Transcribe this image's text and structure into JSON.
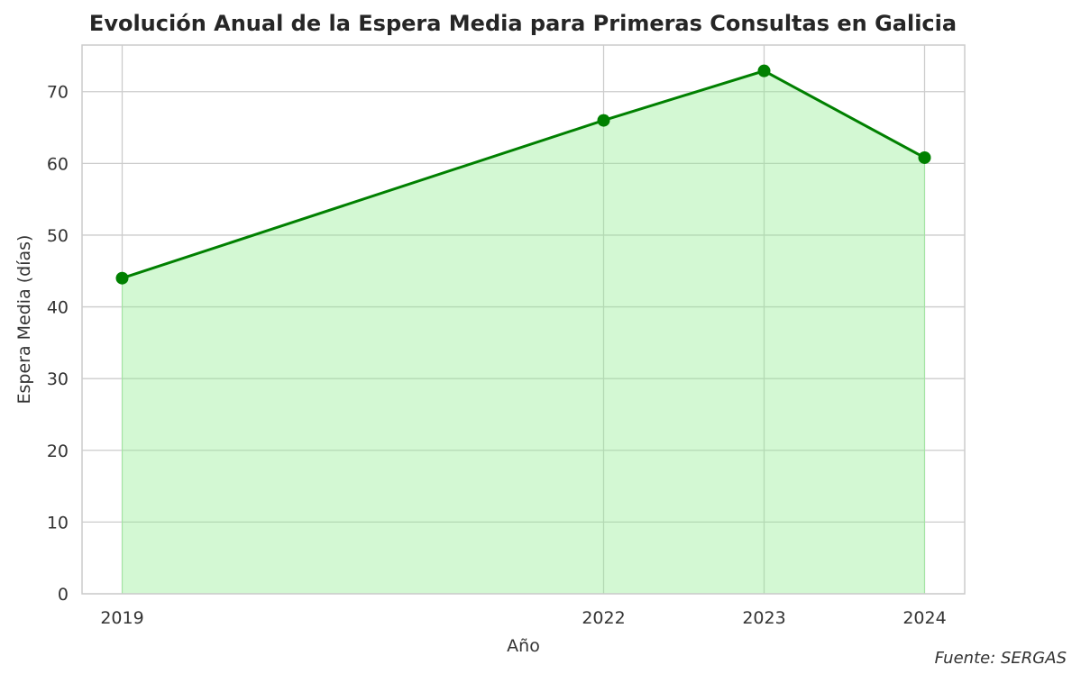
{
  "chart_data": {
    "type": "line",
    "title": "Evolución Anual de la Espera Media para Primeras Consultas en Galicia",
    "xlabel": "Año",
    "ylabel": "Espera Media (días)",
    "x": [
      2019,
      2022,
      2023,
      2024
    ],
    "x_tick_labels": [
      "2019",
      "2022",
      "2023",
      "2024"
    ],
    "series": [
      {
        "name": "Espera Media",
        "values": [
          44.0,
          66.0,
          72.9,
          60.8
        ],
        "color": "#008000",
        "fill": "#90ee90",
        "fill_alpha": 0.4,
        "marker": "circle"
      }
    ],
    "y_ticks": [
      0,
      10,
      20,
      30,
      40,
      50,
      60,
      70
    ],
    "y_tick_labels": [
      "0",
      "10",
      "20",
      "30",
      "40",
      "50",
      "60",
      "70"
    ],
    "ylim": [
      0,
      76.5
    ],
    "xlim": [
      2018.75,
      2024.25
    ],
    "grid": true,
    "legend": null,
    "annotation": "Fuente: SERGAS"
  },
  "colors": {
    "line": "#008000",
    "fill": "#d3f7d3",
    "grid": "#cccccc",
    "text": "#262626"
  }
}
